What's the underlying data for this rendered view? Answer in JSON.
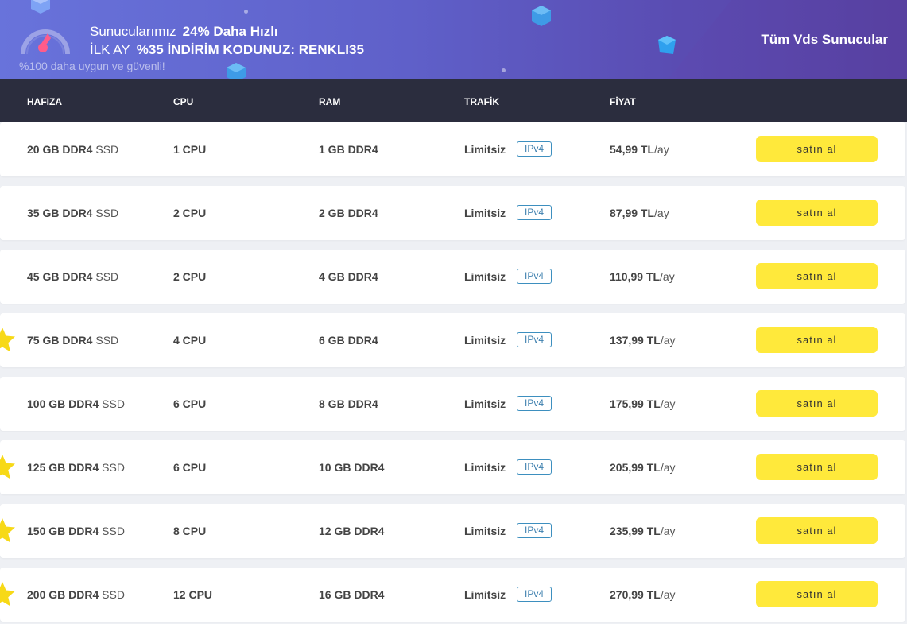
{
  "banner": {
    "line1_prefix": "Sunucularımız",
    "line1_highlight": "24% Daha Hızlı",
    "line2_prefix": "İLK AY",
    "line2_highlight": "%35 İNDİRİM KODUNUZ: RENKLI35",
    "subtitle": "%100 daha uygun ve güvenli!",
    "all_link": "Tüm Vds Sunucular"
  },
  "table": {
    "headers": [
      "HAFIZA",
      "CPU",
      "RAM",
      "TRAFİK",
      "FİYAT"
    ],
    "buy_label": "satın al",
    "ipv4_label": "IPv4",
    "ssd_suffix": "SSD",
    "price_suffix": "/ay",
    "rows": [
      {
        "storage": "20 GB DDR4",
        "cpu": "1 CPU",
        "ram": "1 GB DDR4",
        "traffic": "Limitsiz",
        "price": "54,99 TL",
        "featured": false
      },
      {
        "storage": "35 GB DDR4",
        "cpu": "2 CPU",
        "ram": "2 GB DDR4",
        "traffic": "Limitsiz",
        "price": "87,99 TL",
        "featured": false
      },
      {
        "storage": "45 GB DDR4",
        "cpu": "2 CPU",
        "ram": "4 GB DDR4",
        "traffic": "Limitsiz",
        "price": "110,99 TL",
        "featured": false
      },
      {
        "storage": "75 GB DDR4",
        "cpu": "4 CPU",
        "ram": "6 GB DDR4",
        "traffic": "Limitsiz",
        "price": "137,99 TL",
        "featured": true
      },
      {
        "storage": "100 GB DDR4",
        "cpu": "6 CPU",
        "ram": "8 GB DDR4",
        "traffic": "Limitsiz",
        "price": "175,99 TL",
        "featured": false
      },
      {
        "storage": "125 GB DDR4",
        "cpu": "6 CPU",
        "ram": "10 GB DDR4",
        "traffic": "Limitsiz",
        "price": "205,99 TL",
        "featured": true
      },
      {
        "storage": "150 GB DDR4",
        "cpu": "8 CPU",
        "ram": "12 GB DDR4",
        "traffic": "Limitsiz",
        "price": "235,99 TL",
        "featured": true
      },
      {
        "storage": "200 GB DDR4",
        "cpu": "12 CPU",
        "ram": "16 GB DDR4",
        "traffic": "Limitsiz",
        "price": "270,99 TL",
        "featured": true
      }
    ]
  },
  "colors": {
    "buy_button": "#ffe93b",
    "header_bg": "#2b2d3e",
    "ipv4_border": "#3d8fbf",
    "star": "#f7d917",
    "gauge_needle": "#ff5c8a"
  }
}
